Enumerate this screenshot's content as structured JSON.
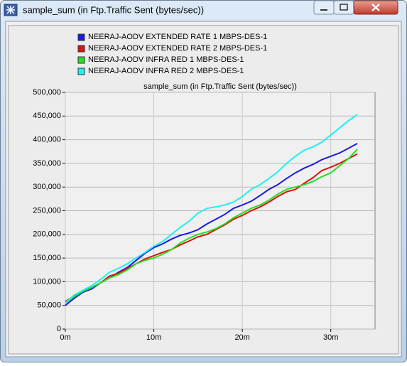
{
  "window_title": "sample_sum (in Ftp.Traffic Sent (bytes/sec))",
  "chart_data": {
    "type": "line",
    "title": "sample_sum (in Ftp.Traffic Sent (bytes/sec))",
    "x": [
      0,
      1,
      2,
      3,
      4,
      5,
      6,
      7,
      8,
      9,
      10,
      11,
      12,
      13,
      14,
      15,
      16,
      17,
      18,
      19,
      20,
      21,
      22,
      23,
      24,
      25,
      26,
      27,
      28,
      29,
      30,
      31,
      32,
      33
    ],
    "series": [
      {
        "name": "NEERAJ-AODV EXTENDED RATE  1 MBPS-DES-1",
        "color": "#1a1ae6",
        "values": [
          50000,
          65000,
          78000,
          85000,
          98000,
          108000,
          120000,
          130000,
          145000,
          160000,
          172000,
          180000,
          190000,
          198000,
          203000,
          210000,
          222000,
          232000,
          242000,
          255000,
          262000,
          270000,
          282000,
          295000,
          305000,
          318000,
          330000,
          340000,
          348000,
          358000,
          365000,
          372000,
          382000,
          392000
        ]
      },
      {
        "name": "NEERAJ-AODV EXTENDED RATE  2 MBPS-DES-1",
        "color": "#e01010",
        "values": [
          58000,
          70000,
          80000,
          88000,
          98000,
          112000,
          118000,
          128000,
          138000,
          148000,
          155000,
          162000,
          168000,
          178000,
          186000,
          195000,
          200000,
          210000,
          220000,
          232000,
          240000,
          250000,
          258000,
          268000,
          280000,
          290000,
          295000,
          308000,
          320000,
          335000,
          342000,
          350000,
          360000,
          370000
        ]
      },
      {
        "name": "NEERAJ-AODV INFRA RED 1 MBPS-DES-1",
        "color": "#22e022",
        "values": [
          55000,
          68000,
          80000,
          88000,
          98000,
          108000,
          115000,
          125000,
          138000,
          145000,
          150000,
          158000,
          168000,
          182000,
          192000,
          200000,
          205000,
          212000,
          222000,
          235000,
          245000,
          255000,
          262000,
          272000,
          285000,
          295000,
          300000,
          305000,
          312000,
          322000,
          330000,
          345000,
          360000,
          380000
        ]
      },
      {
        "name": "NEERAJ-AODV INFRA RED 2 MBPS-DES-1",
        "color": "#20f0f0",
        "values": [
          55000,
          72000,
          82000,
          92000,
          105000,
          120000,
          128000,
          138000,
          150000,
          162000,
          175000,
          185000,
          200000,
          215000,
          228000,
          245000,
          255000,
          258000,
          262000,
          268000,
          280000,
          295000,
          305000,
          318000,
          332000,
          350000,
          365000,
          378000,
          385000,
          395000,
          410000,
          425000,
          440000,
          453000
        ]
      }
    ],
    "xlim": [
      0,
      35
    ],
    "xticks": [
      {
        "value": 0,
        "label": "0m"
      },
      {
        "value": 10,
        "label": "10m"
      },
      {
        "value": 20,
        "label": "20m"
      },
      {
        "value": 30,
        "label": "30m"
      }
    ],
    "ylim": [
      0,
      500000
    ],
    "yticks": [
      0,
      {
        "value": 50000,
        "label": "50,000"
      },
      {
        "value": 100000,
        "label": "100,000"
      },
      {
        "value": 150000,
        "label": "150,000"
      },
      {
        "value": 200000,
        "label": "200,000"
      },
      {
        "value": 250000,
        "label": "250,000"
      },
      {
        "value": 300000,
        "label": "300,000"
      },
      {
        "value": 350000,
        "label": "350,000"
      },
      {
        "value": 400000,
        "label": "400,000"
      },
      {
        "value": 450000,
        "label": "450,000"
      },
      {
        "value": 500000,
        "label": "500,000"
      }
    ],
    "grid": true
  }
}
